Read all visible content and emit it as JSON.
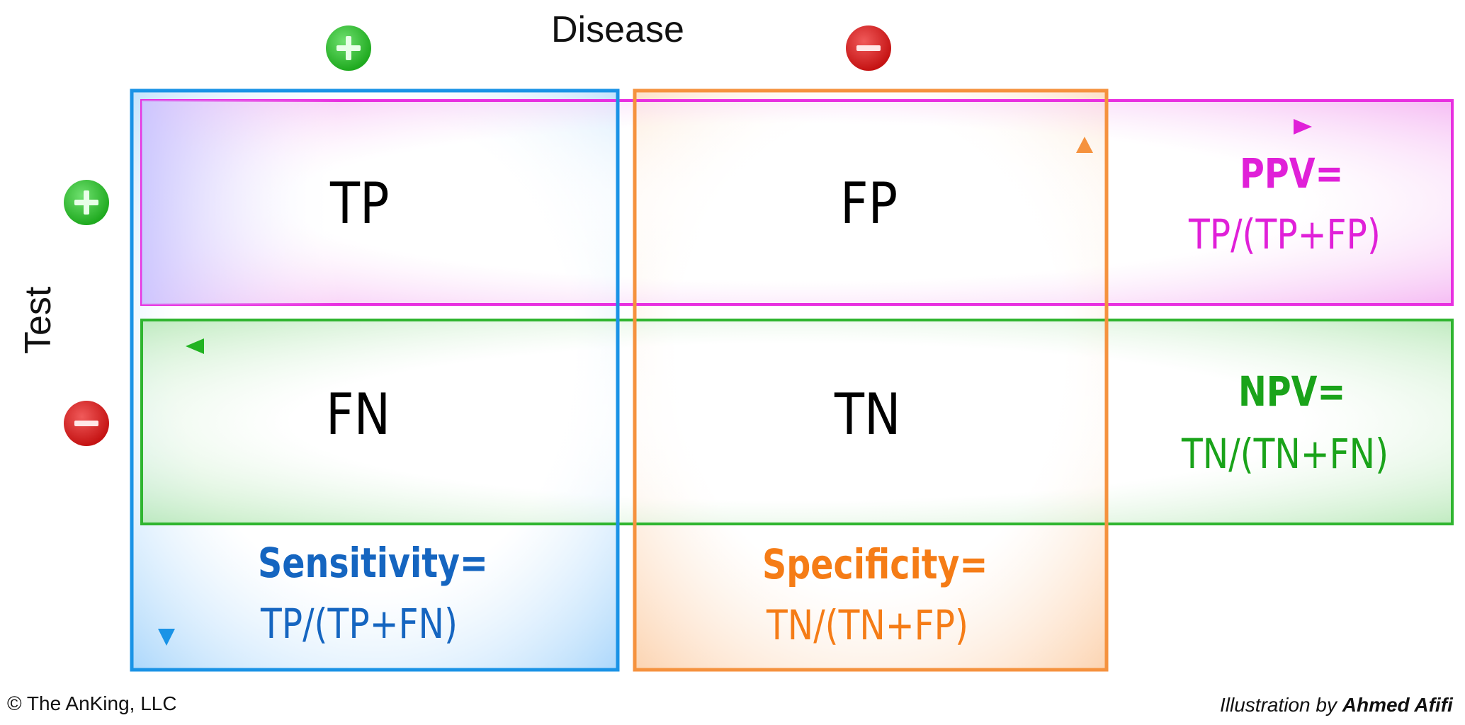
{
  "axes": {
    "disease_label": "Disease",
    "test_label": "Test"
  },
  "cells": {
    "tp": "TP",
    "fp": "FP",
    "fn": "FN",
    "tn": "TN"
  },
  "metrics": {
    "ppv": {
      "label": "PPV=",
      "formula": "TP/(TP+FP)",
      "color": "#e020d8"
    },
    "npv": {
      "label": "NPV=",
      "formula": "TN/(TN+FN)",
      "color": "#1aa31a"
    },
    "sensitivity": {
      "label": "Sensitivity=",
      "formula": "TP/(TP+FN)",
      "color": "#1565c0"
    },
    "specificity": {
      "label": "Specificity=",
      "formula": "TN/(TN+FP)",
      "color": "#f57c16"
    }
  },
  "icons": {
    "positive": "plus-icon",
    "negative": "minus-icon"
  },
  "colors": {
    "sensitivity_box": "#1a93e6",
    "specificity_box": "#f5923e",
    "ppv_box": "#e82fe0",
    "npv_box": "#2fb52f",
    "positive_badge": "#2ec12e",
    "negative_badge": "#d01818"
  },
  "footer": {
    "copyright": "© The AnKing, LLC",
    "credit_prefix": "Illustration by ",
    "credit_name": "Ahmed Afifi"
  }
}
